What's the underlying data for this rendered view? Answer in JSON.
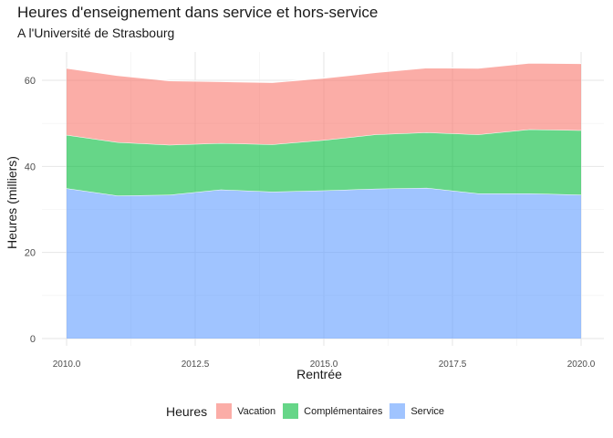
{
  "chart_data": {
    "type": "area",
    "title": "Heures d'enseignement dans service et hors-service",
    "subtitle": "A l'Université de Strasbourg",
    "xlabel": "Rentrée",
    "ylabel": "Heures (milliers)",
    "x": [
      2010,
      2011,
      2012,
      2013,
      2014,
      2015,
      2016,
      2017,
      2018,
      2019,
      2020
    ],
    "xlim": [
      2010,
      2020
    ],
    "ylim": [
      0,
      67
    ],
    "x_ticks": [
      "2010.0",
      "2012.5",
      "2015.0",
      "2017.5",
      "2020.0"
    ],
    "y_ticks": [
      "0",
      "20",
      "40",
      "60"
    ],
    "stacked": true,
    "grid": true,
    "legend": {
      "title": "Heures",
      "position": "bottom"
    },
    "series": [
      {
        "name": "Vacation",
        "color": "#f8766d",
        "values": [
          15.5,
          15.5,
          14.9,
          14.3,
          14.4,
          14.4,
          14.4,
          15.0,
          15.4,
          15.4,
          15.5
        ]
      },
      {
        "name": "Complémentaires",
        "color": "#00ba38",
        "values": [
          12.4,
          12.4,
          11.6,
          10.8,
          11.0,
          11.7,
          12.6,
          12.9,
          13.7,
          14.9,
          15.0
        ]
      },
      {
        "name": "Service",
        "color": "#619cff",
        "values": [
          34.9,
          33.2,
          33.4,
          34.6,
          34.1,
          34.4,
          34.8,
          35.0,
          33.7,
          33.7,
          33.4
        ]
      }
    ]
  }
}
